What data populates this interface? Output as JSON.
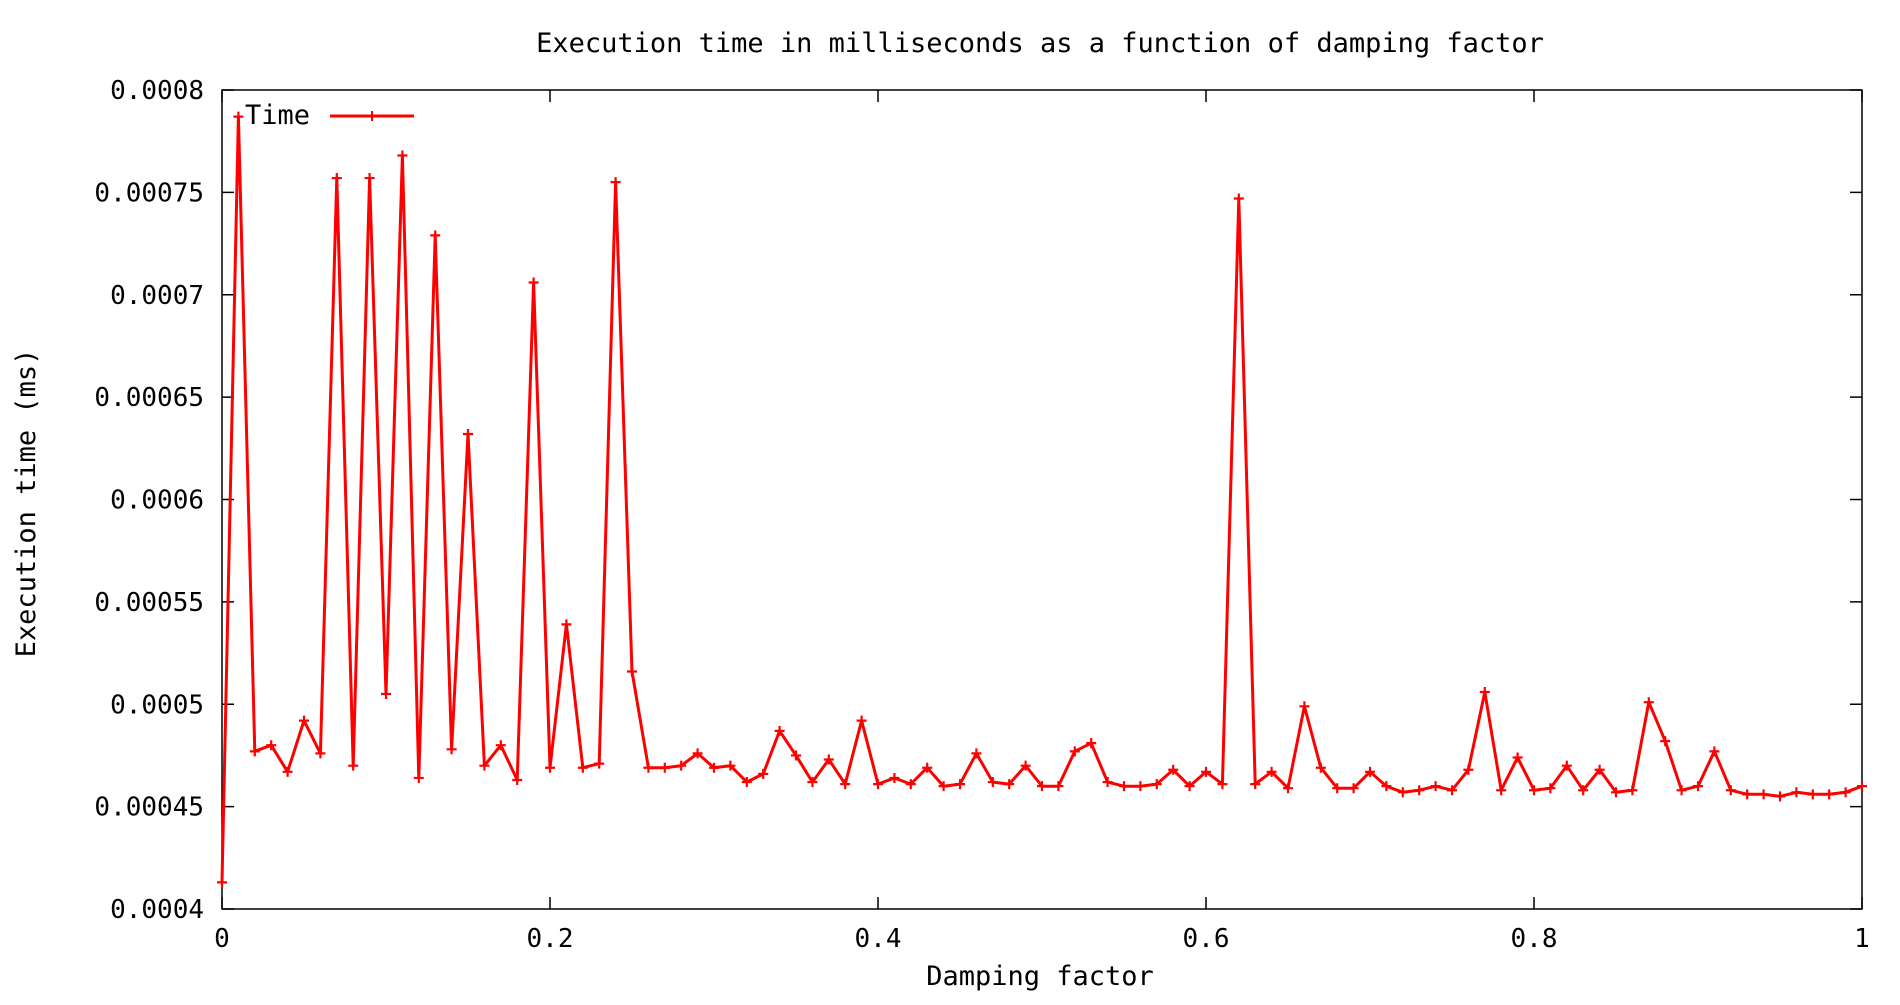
{
  "colors": {
    "series": "#ff0000",
    "axis": "#000000",
    "background": "#ffffff"
  },
  "chart_data": {
    "type": "line",
    "title": "Execution time in milliseconds as a function of damping factor",
    "xlabel": "Damping factor",
    "ylabel": "Execution time (ms)",
    "xlim": [
      0,
      1
    ],
    "ylim": [
      0.0004,
      0.0008
    ],
    "x_ticks": [
      0,
      0.2,
      0.4,
      0.6,
      0.8,
      1
    ],
    "x_tick_labels": [
      "0",
      "0.2",
      "0.4",
      "0.6",
      "0.8",
      "1"
    ],
    "y_ticks": [
      0.0004,
      0.00045,
      0.0005,
      0.00055,
      0.0006,
      0.00065,
      0.0007,
      0.00075,
      0.0008
    ],
    "y_tick_labels": [
      "0.0004",
      "0.00045",
      "0.0005",
      "0.00055",
      "0.0006",
      "0.00065",
      "0.0007",
      "0.00075",
      "0.0008"
    ],
    "grid": false,
    "legend_position": "top-left",
    "series": [
      {
        "name": "Time",
        "x": [
          0,
          0.01,
          0.02,
          0.03,
          0.04,
          0.05,
          0.06,
          0.07,
          0.08,
          0.09,
          0.1,
          0.11,
          0.12,
          0.13,
          0.14,
          0.15,
          0.16,
          0.17,
          0.18,
          0.19,
          0.2,
          0.21,
          0.22,
          0.23,
          0.24,
          0.25,
          0.26,
          0.27,
          0.28,
          0.29,
          0.3,
          0.31,
          0.32,
          0.33,
          0.34,
          0.35,
          0.36,
          0.37,
          0.38,
          0.39,
          0.4,
          0.41,
          0.42,
          0.43,
          0.44,
          0.45,
          0.46,
          0.47,
          0.48,
          0.49,
          0.5,
          0.51,
          0.52,
          0.53,
          0.54,
          0.55,
          0.56,
          0.57,
          0.58,
          0.59,
          0.6,
          0.61,
          0.62,
          0.63,
          0.64,
          0.65,
          0.66,
          0.67,
          0.68,
          0.69,
          0.7,
          0.71,
          0.72,
          0.73,
          0.74,
          0.75,
          0.76,
          0.77,
          0.78,
          0.79,
          0.8,
          0.81,
          0.82,
          0.83,
          0.84,
          0.85,
          0.86,
          0.87,
          0.88,
          0.89,
          0.9,
          0.91,
          0.92,
          0.93,
          0.94,
          0.95,
          0.96,
          0.97,
          0.98,
          0.99,
          1.0
        ],
        "values": [
          0.000413,
          0.000787,
          0.000477,
          0.00048,
          0.000467,
          0.000492,
          0.000476,
          0.000757,
          0.00047,
          0.000757,
          0.000505,
          0.000768,
          0.000464,
          0.000729,
          0.000478,
          0.000632,
          0.00047,
          0.00048,
          0.000463,
          0.000706,
          0.000469,
          0.000539,
          0.000469,
          0.000471,
          0.000755,
          0.000516,
          0.000469,
          0.000469,
          0.00047,
          0.000476,
          0.000469,
          0.00047,
          0.000462,
          0.000466,
          0.000487,
          0.000475,
          0.000462,
          0.000473,
          0.000461,
          0.000492,
          0.000461,
          0.000464,
          0.000461,
          0.000469,
          0.00046,
          0.000461,
          0.000476,
          0.000462,
          0.000461,
          0.00047,
          0.00046,
          0.00046,
          0.000477,
          0.000481,
          0.000462,
          0.00046,
          0.00046,
          0.000461,
          0.000468,
          0.00046,
          0.000467,
          0.000461,
          0.000747,
          0.000461,
          0.000467,
          0.000459,
          0.000499,
          0.000469,
          0.000459,
          0.000459,
          0.000467,
          0.00046,
          0.000457,
          0.000458,
          0.00046,
          0.000458,
          0.000468,
          0.000506,
          0.000458,
          0.000474,
          0.000458,
          0.000459,
          0.00047,
          0.000458,
          0.000468,
          0.000457,
          0.000458,
          0.000501,
          0.000482,
          0.000458,
          0.00046,
          0.000477,
          0.000458,
          0.000456,
          0.000456,
          0.000455,
          0.000457,
          0.000456,
          0.000456,
          0.000457,
          0.00046
        ]
      }
    ]
  }
}
